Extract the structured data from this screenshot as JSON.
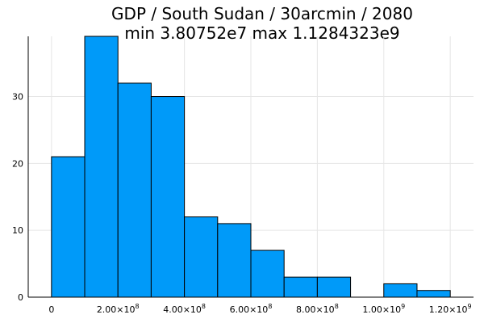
{
  "chart_data": {
    "type": "histogram",
    "title_line1": "GDP / South Sudan / 30arcmin / 2080",
    "title_line2": "min 3.80752e7  max 1.1284323e9",
    "xlabel": "",
    "ylabel": "",
    "bar_color": "#009af9",
    "bin_width": 100000000,
    "bins": [
      {
        "start": 0,
        "count": 21
      },
      {
        "start": 100000000,
        "count": 39
      },
      {
        "start": 200000000,
        "count": 32
      },
      {
        "start": 300000000,
        "count": 30
      },
      {
        "start": 400000000,
        "count": 12
      },
      {
        "start": 500000000,
        "count": 11
      },
      {
        "start": 600000000,
        "count": 7
      },
      {
        "start": 700000000,
        "count": 3
      },
      {
        "start": 800000000,
        "count": 3
      },
      {
        "start": 900000000,
        "count": 0
      },
      {
        "start": 1000000000,
        "count": 2
      },
      {
        "start": 1100000000,
        "count": 1
      }
    ],
    "xlim": [
      -70000000,
      1270000000
    ],
    "ylim": [
      0,
      39
    ],
    "x_ticks": [
      {
        "value": 0,
        "mant": "0",
        "exp": ""
      },
      {
        "value": 200000000,
        "mant": "2.00×10",
        "exp": "8"
      },
      {
        "value": 400000000,
        "mant": "4.00×10",
        "exp": "8"
      },
      {
        "value": 600000000,
        "mant": "6.00×10",
        "exp": "8"
      },
      {
        "value": 800000000,
        "mant": "8.00×10",
        "exp": "8"
      },
      {
        "value": 1000000000,
        "mant": "1.00×10",
        "exp": "9"
      },
      {
        "value": 1200000000,
        "mant": "1.20×10",
        "exp": "9"
      }
    ],
    "y_ticks": [
      {
        "value": 0,
        "label": "0"
      },
      {
        "value": 10,
        "label": "10"
      },
      {
        "value": 20,
        "label": "20"
      },
      {
        "value": 30,
        "label": "30"
      }
    ],
    "grid": true,
    "legend": "none"
  }
}
